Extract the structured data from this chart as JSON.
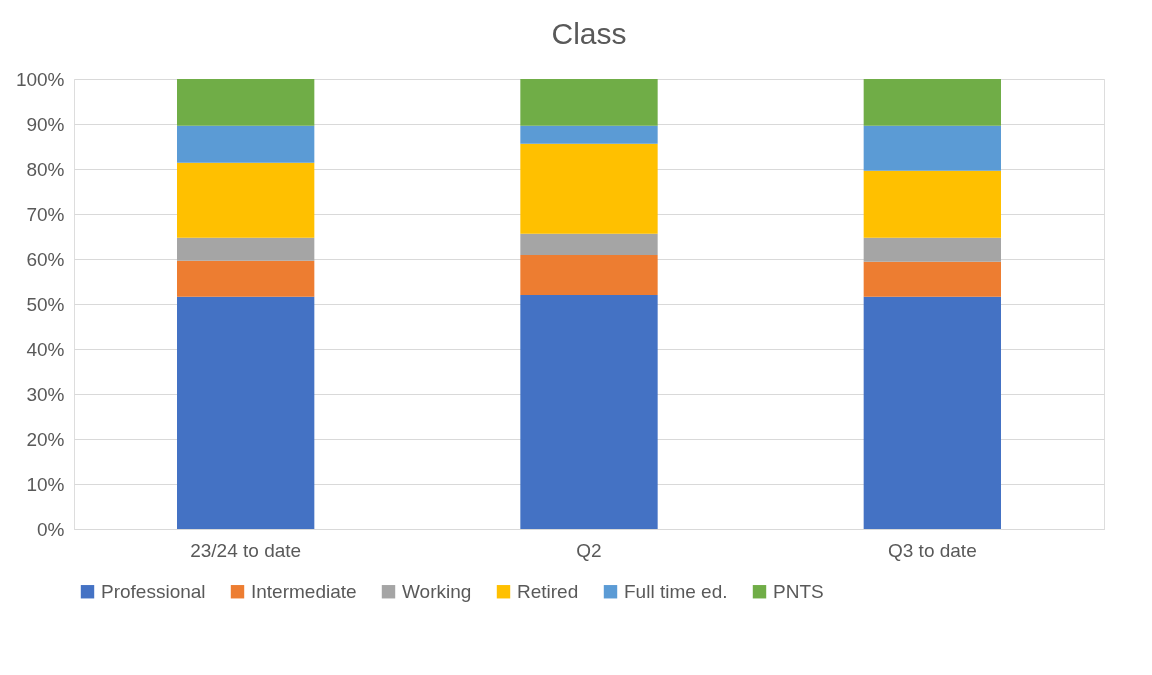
{
  "chart_data": {
    "type": "bar",
    "title": "Class",
    "stacked": true,
    "categories": [
      "23/24 to date",
      "Q2",
      "Q3 to date"
    ],
    "series": [
      {
        "name": "Professional",
        "color": "#4472c4",
        "values": [
          51.6,
          52.0,
          51.6
        ]
      },
      {
        "name": "Intermediate",
        "color": "#ed7d31",
        "values": [
          8.0,
          8.9,
          7.8
        ]
      },
      {
        "name": "Working",
        "color": "#a5a5a5",
        "values": [
          5.1,
          4.7,
          5.3
        ]
      },
      {
        "name": "Retired",
        "color": "#ffc000",
        "values": [
          16.7,
          20.0,
          14.9
        ]
      },
      {
        "name": "Full time ed.",
        "color": "#5b9bd5",
        "values": [
          8.2,
          4.0,
          10.0
        ]
      },
      {
        "name": "PNTS",
        "color": "#70ad47",
        "values": [
          10.4,
          10.4,
          10.4
        ]
      }
    ],
    "ylim": [
      0,
      100
    ],
    "yticks": [
      {
        "value": 0,
        "label": "0%"
      },
      {
        "value": 10,
        "label": "10%"
      },
      {
        "value": 20,
        "label": "20%"
      },
      {
        "value": 30,
        "label": "30%"
      },
      {
        "value": 40,
        "label": "40%"
      },
      {
        "value": 50,
        "label": "50%"
      },
      {
        "value": 60,
        "label": "60%"
      },
      {
        "value": 70,
        "label": "70%"
      },
      {
        "value": 80,
        "label": "80%"
      },
      {
        "value": 90,
        "label": "90%"
      },
      {
        "value": 100,
        "label": "100%"
      }
    ],
    "grid": "y",
    "legend": "bottom"
  }
}
